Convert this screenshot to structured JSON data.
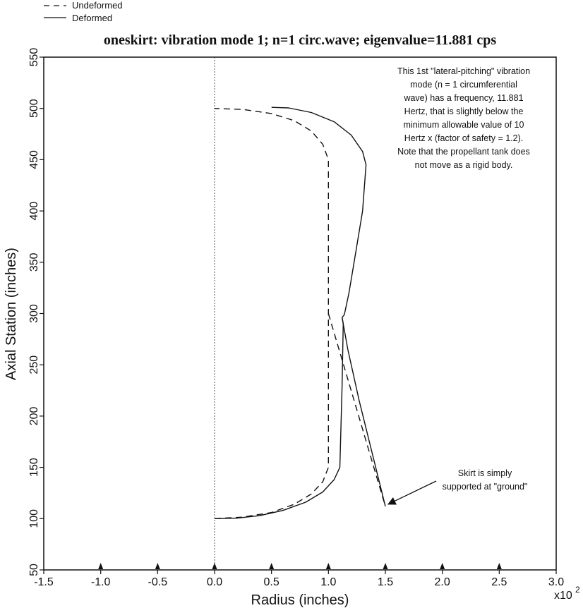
{
  "legend": {
    "items": [
      {
        "label": "Undeformed",
        "style": "dashed"
      },
      {
        "label": "Deformed",
        "style": "solid"
      }
    ]
  },
  "chart_data": {
    "type": "line",
    "title": "oneskirt: vibration mode 1; n=1 circ.wave; eigenvalue=11.881 cps",
    "xlabel": "Radius (inches)",
    "ylabel": "Axial Station (inches)",
    "x_multiplier_label": "x10",
    "x_multiplier_exponent": "2",
    "xlim": [
      -1.5,
      3.0
    ],
    "ylim": [
      50,
      550
    ],
    "x_ticks": [
      "-1.5",
      "-1.0",
      "-0.5",
      "0.0",
      "0.5",
      "1.0",
      "1.5",
      "2.0",
      "2.5",
      "3.0"
    ],
    "y_ticks": [
      "50",
      "100",
      "150",
      "200",
      "250",
      "300",
      "350",
      "400",
      "450",
      "500",
      "550"
    ],
    "grid": false,
    "legend_position": "top-left, outside plot",
    "series": [
      {
        "name": "Undeformed",
        "style": "dashed",
        "points": [
          [
            0.0,
            100
          ],
          [
            0.25,
            101.5
          ],
          [
            0.5,
            106
          ],
          [
            0.7,
            114
          ],
          [
            0.85,
            124
          ],
          [
            0.95,
            136
          ],
          [
            1.0,
            150
          ],
          [
            1.0,
            300
          ],
          [
            1.0,
            450
          ],
          [
            0.95,
            465
          ],
          [
            0.85,
            478
          ],
          [
            0.7,
            488
          ],
          [
            0.5,
            495
          ],
          [
            0.25,
            499
          ],
          [
            0.0,
            500
          ]
        ]
      },
      {
        "name": "Undeformed",
        "style": "dashed",
        "points": [
          [
            1.0,
            300
          ],
          [
            1.5,
            112
          ]
        ]
      },
      {
        "name": "Deformed",
        "style": "solid",
        "points": [
          [
            0.0,
            100
          ],
          [
            0.2,
            100.5
          ],
          [
            0.4,
            103
          ],
          [
            0.6,
            108
          ],
          [
            0.8,
            116
          ],
          [
            0.95,
            126
          ],
          [
            1.05,
            138
          ],
          [
            1.1,
            150
          ],
          [
            1.12,
            230
          ],
          [
            1.13,
            290
          ],
          [
            1.12,
            296
          ],
          [
            1.14,
            299
          ],
          [
            1.18,
            320
          ],
          [
            1.24,
            360
          ],
          [
            1.3,
            400
          ],
          [
            1.33,
            445
          ],
          [
            1.3,
            458
          ],
          [
            1.2,
            474
          ],
          [
            1.05,
            487
          ],
          [
            0.85,
            496
          ],
          [
            0.65,
            500.5
          ],
          [
            0.5,
            501
          ]
        ]
      },
      {
        "name": "Deformed",
        "style": "solid",
        "points": [
          [
            1.12,
            296
          ],
          [
            1.17,
            265
          ],
          [
            1.27,
            215
          ],
          [
            1.5,
            112
          ]
        ]
      }
    ],
    "annotations": [
      {
        "lines": [
          "This 1st \"lateral-pitching\" vibration",
          "mode (n = 1 circumferential",
          "wave) has a frequency, 11.881",
          "Hertz, that is slightly below the",
          "minimum allowable value of 10",
          "Hertz x (factor of safety = 1.2).",
          "Note that the propellant tank does",
          "not move as a rigid body."
        ]
      },
      {
        "lines": [
          "Skirt is simply",
          "supported at \"ground\""
        ],
        "arrow_target": [
          1.5,
          112
        ]
      }
    ],
    "reference_line": {
      "x": 0.0,
      "style": "dotted"
    },
    "ground_markers": [
      -1.0,
      -0.5,
      0.0,
      0.5,
      1.0,
      1.5,
      2.0,
      2.5
    ]
  }
}
